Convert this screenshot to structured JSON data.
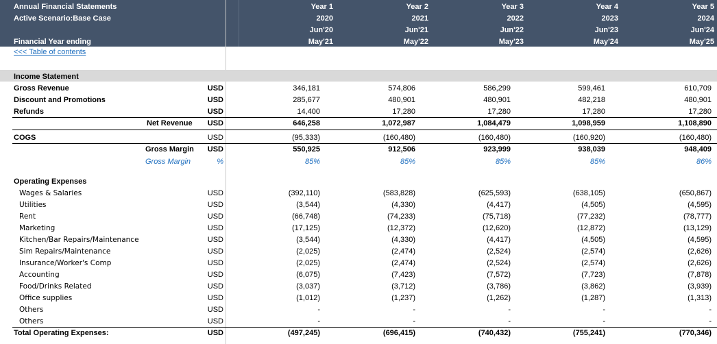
{
  "header": {
    "line1": "Annual Financial Statements",
    "line2": "Active Scenario:Base Case",
    "line4": "Financial Year ending",
    "columns": [
      {
        "year": "Year 1",
        "fy": "2020",
        "start": "Jun'20",
        "end": "May'21"
      },
      {
        "year": "Year 2",
        "fy": "2021",
        "start": "Jun'21",
        "end": "May'22"
      },
      {
        "year": "Year 3",
        "fy": "2022",
        "start": "Jun'22",
        "end": "May'23"
      },
      {
        "year": "Year 4",
        "fy": "2023",
        "start": "Jun'23",
        "end": "May'24"
      },
      {
        "year": "Year 5",
        "fy": "2024",
        "start": "Jun'24",
        "end": "May'25"
      }
    ]
  },
  "toc_link": "<<< Table of contents",
  "income_statement": {
    "title": "Income Statement",
    "rows": [
      {
        "label": "Gross Revenue",
        "unit": "USD",
        "values": [
          "346,181",
          "574,806",
          "586,299",
          "599,461",
          "610,709"
        ]
      },
      {
        "label": "Discount and Promotions",
        "unit": "USD",
        "values": [
          "285,677",
          "480,901",
          "480,901",
          "482,218",
          "480,901"
        ]
      },
      {
        "label": "Refunds",
        "unit": "USD",
        "values": [
          "14,400",
          "17,280",
          "17,280",
          "17,280",
          "17,280"
        ]
      },
      {
        "label": "Net Revenue",
        "unit": "USD",
        "values": [
          "646,258",
          "1,072,987",
          "1,084,479",
          "1,098,959",
          "1,108,890"
        ]
      },
      {
        "label": "COGS",
        "unit": "USD",
        "values": [
          "(95,333)",
          "(160,480)",
          "(160,480)",
          "(160,920)",
          "(160,480)"
        ]
      },
      {
        "label": "Gross Margin",
        "unit": "USD",
        "values": [
          "550,925",
          "912,506",
          "923,999",
          "938,039",
          "948,409"
        ]
      },
      {
        "label": "Gross Margin",
        "unit": "%",
        "values": [
          "85%",
          "85%",
          "85%",
          "85%",
          "86%"
        ]
      }
    ]
  },
  "operating_expenses": {
    "title": "Operating Expenses",
    "rows": [
      {
        "label": "Wages & Salaries",
        "unit": "USD",
        "values": [
          "(392,110)",
          "(583,828)",
          "(625,593)",
          "(638,105)",
          "(650,867)"
        ]
      },
      {
        "label": "Utilities",
        "unit": "USD",
        "values": [
          "(3,544)",
          "(4,330)",
          "(4,417)",
          "(4,505)",
          "(4,595)"
        ]
      },
      {
        "label": "Rent",
        "unit": "USD",
        "values": [
          "(66,748)",
          "(74,233)",
          "(75,718)",
          "(77,232)",
          "(78,777)"
        ]
      },
      {
        "label": "Marketing",
        "unit": "USD",
        "values": [
          "(17,125)",
          "(12,372)",
          "(12,620)",
          "(12,872)",
          "(13,129)"
        ]
      },
      {
        "label": "Kitchen/Bar Repairs/Maintenance",
        "unit": "USD",
        "values": [
          "(3,544)",
          "(4,330)",
          "(4,417)",
          "(4,505)",
          "(4,595)"
        ]
      },
      {
        "label": "Sim Repairs/Maintenance",
        "unit": "USD",
        "values": [
          "(2,025)",
          "(2,474)",
          "(2,524)",
          "(2,574)",
          "(2,626)"
        ]
      },
      {
        "label": "Insurance/Worker's Comp",
        "unit": "USD",
        "values": [
          "(2,025)",
          "(2,474)",
          "(2,524)",
          "(2,574)",
          "(2,626)"
        ]
      },
      {
        "label": "Accounting",
        "unit": "USD",
        "values": [
          "(6,075)",
          "(7,423)",
          "(7,572)",
          "(7,723)",
          "(7,878)"
        ]
      },
      {
        "label": "Food/Drinks Related",
        "unit": "USD",
        "values": [
          "(3,037)",
          "(3,712)",
          "(3,786)",
          "(3,862)",
          "(3,939)"
        ]
      },
      {
        "label": "Office supplies",
        "unit": "USD",
        "values": [
          "(1,012)",
          "(1,237)",
          "(1,262)",
          "(1,287)",
          "(1,313)"
        ]
      },
      {
        "label": "Others",
        "unit": "USD",
        "values": [
          "-",
          "-",
          "-",
          "-",
          "-"
        ]
      },
      {
        "label": "Others",
        "unit": "USD",
        "values": [
          "-",
          "-",
          "-",
          "-",
          "-"
        ]
      },
      {
        "label": "Total Operating Expenses:",
        "unit": "USD",
        "values": [
          "(497,245)",
          "(696,415)",
          "(740,432)",
          "(755,241)",
          "(770,346)"
        ]
      }
    ]
  }
}
